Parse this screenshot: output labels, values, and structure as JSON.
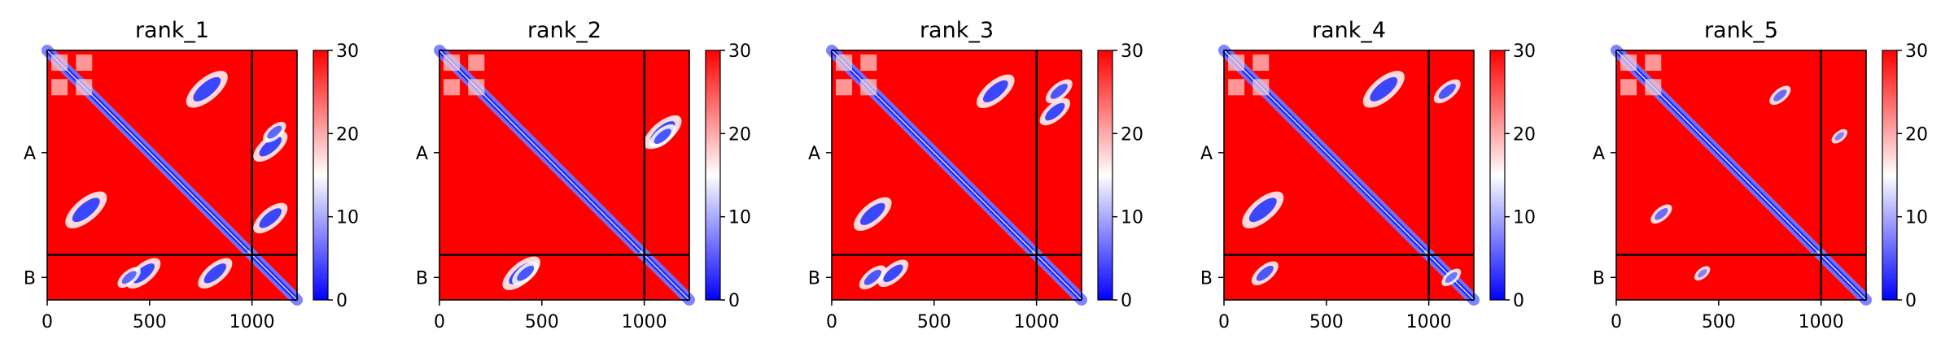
{
  "chart_data": [
    {
      "type": "heatmap",
      "title": "rank_1",
      "x_ticks": [
        0,
        500,
        1000
      ],
      "xlim": [
        0,
        1220
      ],
      "chain_boundary": 1000,
      "y_tick_labels": [
        "A",
        "B"
      ],
      "colorbar": {
        "range": [
          0,
          30
        ],
        "ticks": [
          0,
          10,
          20,
          30
        ],
        "colors": [
          "#0000ff",
          "#ffffff",
          "#ff0000"
        ]
      },
      "blobs": [
        [
          190,
          780,
          0.9
        ],
        [
          780,
          190,
          0.9
        ],
        [
          470,
          1090,
          0.7
        ],
        [
          1090,
          470,
          0.7
        ],
        [
          820,
          1090,
          0.7
        ],
        [
          1090,
          820,
          0.7
        ],
        [
          1110,
          400,
          0.4
        ],
        [
          400,
          1110,
          0.4
        ]
      ]
    },
    {
      "type": "heatmap",
      "title": "rank_2",
      "x_ticks": [
        0,
        500,
        1000
      ],
      "xlim": [
        0,
        1220
      ],
      "chain_boundary": 1000,
      "y_tick_labels": [
        "A",
        "B"
      ],
      "colorbar": {
        "range": [
          0,
          30
        ],
        "ticks": [
          0,
          10,
          20,
          30
        ],
        "colors": [
          "#0000ff",
          "#ffffff",
          "#ff0000"
        ]
      },
      "blobs": [
        [
          400,
          1090,
          0.8
        ],
        [
          1090,
          400,
          0.8
        ],
        [
          1090,
          420,
          0.5
        ],
        [
          420,
          1090,
          0.5
        ]
      ]
    },
    {
      "type": "heatmap",
      "title": "rank_3",
      "x_ticks": [
        0,
        500,
        1000
      ],
      "xlim": [
        0,
        1220
      ],
      "chain_boundary": 1000,
      "y_tick_labels": [
        "A",
        "B"
      ],
      "colorbar": {
        "range": [
          0,
          30
        ],
        "ticks": [
          0,
          10,
          20,
          30
        ],
        "colors": [
          "#0000ff",
          "#ffffff",
          "#ff0000"
        ]
      },
      "blobs": [
        [
          200,
          800,
          0.8
        ],
        [
          800,
          200,
          0.8
        ],
        [
          300,
          1090,
          0.6
        ],
        [
          1090,
          300,
          0.6
        ],
        [
          1110,
          200,
          0.5
        ],
        [
          200,
          1110,
          0.5
        ]
      ]
    },
    {
      "type": "heatmap",
      "title": "rank_4",
      "x_ticks": [
        0,
        500,
        1000
      ],
      "xlim": [
        0,
        1220
      ],
      "chain_boundary": 1000,
      "y_tick_labels": [
        "A",
        "B"
      ],
      "colorbar": {
        "range": [
          0,
          30
        ],
        "ticks": [
          0,
          10,
          20,
          30
        ],
        "colors": [
          "#0000ff",
          "#ffffff",
          "#ff0000"
        ]
      },
      "blobs": [
        [
          190,
          780,
          0.9
        ],
        [
          780,
          190,
          0.9
        ],
        [
          200,
          1090,
          0.5
        ],
        [
          1090,
          200,
          0.5
        ],
        [
          1110,
          1110,
          0.3
        ]
      ]
    },
    {
      "type": "heatmap",
      "title": "rank_5",
      "x_ticks": [
        0,
        500,
        1000
      ],
      "xlim": [
        0,
        1220
      ],
      "chain_boundary": 1000,
      "y_tick_labels": [
        "A",
        "B"
      ],
      "colorbar": {
        "range": [
          0,
          30
        ],
        "ticks": [
          0,
          10,
          20,
          30
        ],
        "colors": [
          "#0000ff",
          "#ffffff",
          "#ff0000"
        ]
      },
      "blobs": [
        [
          220,
          800,
          0.35
        ],
        [
          800,
          220,
          0.35
        ],
        [
          1090,
          420,
          0.2
        ],
        [
          420,
          1090,
          0.2
        ]
      ]
    }
  ]
}
